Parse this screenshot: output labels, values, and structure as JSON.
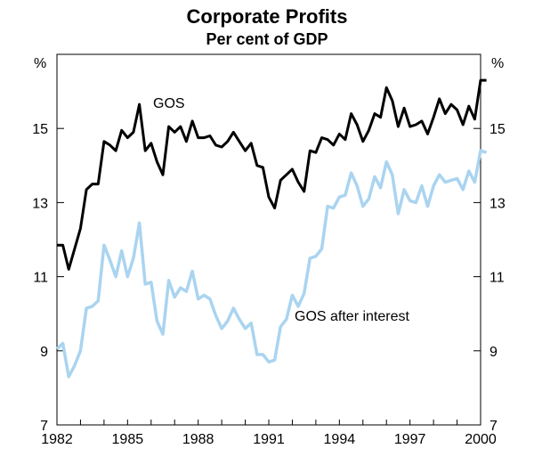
{
  "chart_data": {
    "type": "line",
    "title": "Corporate Profits",
    "subtitle": "Per cent of GDP",
    "ylabel_left": "%",
    "ylabel_right": "%",
    "ylim": [
      7,
      17
    ],
    "yticks": [
      7,
      9,
      11,
      13,
      15
    ],
    "xlim": [
      1982,
      2000
    ],
    "xticks": [
      1982,
      1985,
      1988,
      1991,
      1994,
      1997,
      2000
    ],
    "colors": {
      "gos": "#000000",
      "gos_after_interest": "#aad4f0",
      "axis": "#000000"
    },
    "series": [
      {
        "name": "GOS",
        "label": "GOS",
        "values": [
          11.85,
          11.85,
          11.2,
          11.75,
          12.3,
          13.35,
          13.5,
          13.5,
          14.65,
          14.55,
          14.4,
          14.95,
          14.75,
          14.9,
          15.65,
          14.4,
          14.6,
          14.1,
          13.75,
          15.05,
          14.9,
          15.05,
          14.65,
          15.2,
          14.75,
          14.75,
          14.8,
          14.55,
          14.5,
          14.65,
          14.9,
          14.65,
          14.4,
          14.6,
          14.0,
          13.95,
          13.15,
          12.85,
          13.6,
          13.75,
          13.9,
          13.55,
          13.3,
          14.4,
          14.35,
          14.75,
          14.7,
          14.55,
          14.85,
          14.7,
          15.4,
          15.1,
          14.65,
          14.95,
          15.4,
          15.3,
          16.1,
          15.75,
          15.05,
          15.55,
          15.05,
          15.1,
          15.2,
          14.85,
          15.3,
          15.8,
          15.4,
          15.65,
          15.5,
          15.1,
          15.6,
          15.25,
          16.3,
          16.3
        ],
        "x_start": 1982.0,
        "x_step": 0.25
      },
      {
        "name": "GOS after interest",
        "label": "GOS after interest",
        "values": [
          9.05,
          9.2,
          8.3,
          8.6,
          9.0,
          10.15,
          10.2,
          10.35,
          11.85,
          11.45,
          11.0,
          11.7,
          11.0,
          11.5,
          12.45,
          10.8,
          10.85,
          9.8,
          9.45,
          10.9,
          10.45,
          10.7,
          10.6,
          11.15,
          10.4,
          10.5,
          10.4,
          9.95,
          9.6,
          9.8,
          10.15,
          9.85,
          9.6,
          9.75,
          8.9,
          8.9,
          8.7,
          8.75,
          9.65,
          9.85,
          10.5,
          10.2,
          10.55,
          11.5,
          11.55,
          11.75,
          12.9,
          12.85,
          13.15,
          13.2,
          13.8,
          13.45,
          12.9,
          13.1,
          13.7,
          13.4,
          14.1,
          13.75,
          12.7,
          13.35,
          13.05,
          13.0,
          13.45,
          12.9,
          13.45,
          13.75,
          13.55,
          13.6,
          13.65,
          13.35,
          13.85,
          13.55,
          14.4,
          14.35
        ],
        "x_start": 1982.0,
        "x_step": 0.25
      }
    ]
  }
}
